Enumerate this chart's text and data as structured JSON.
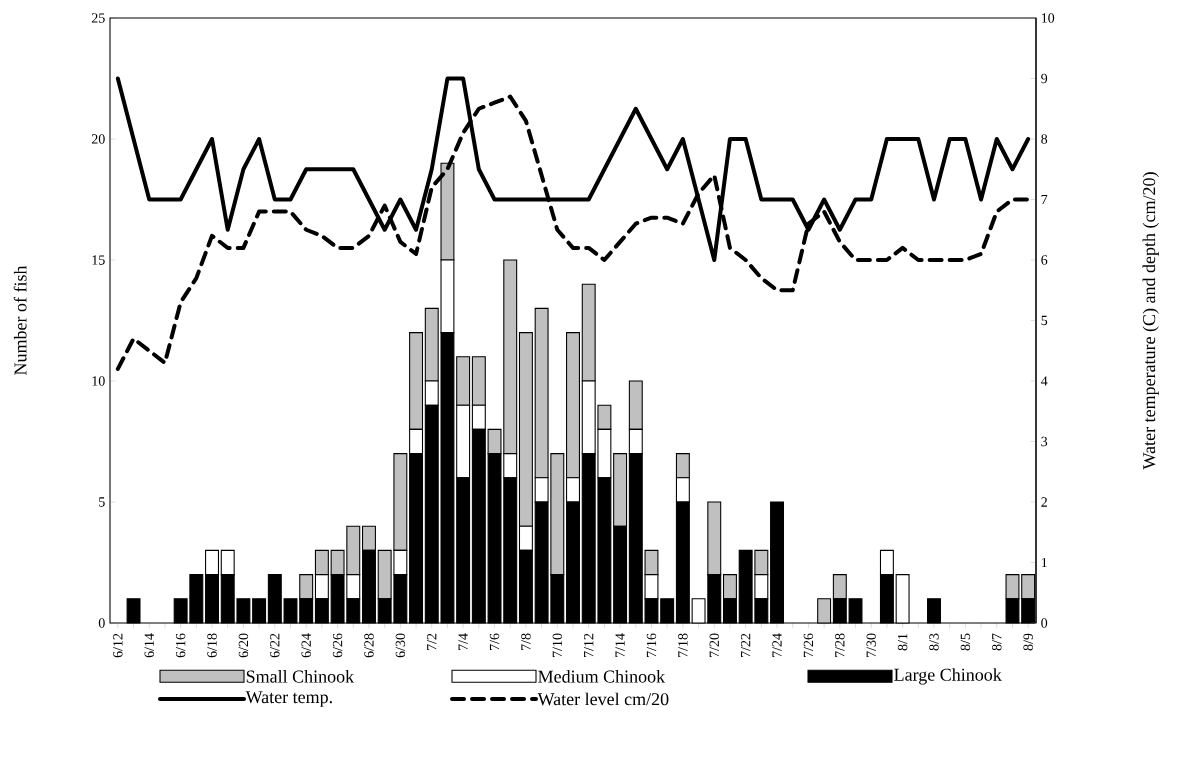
{
  "chart_data": {
    "type": "bar",
    "stacked": true,
    "ylabel": "Number of fish",
    "y2label": "Water temperature (C) and depth (cm/20)",
    "categories": [
      "6/12",
      null,
      "6/14",
      null,
      "6/16",
      null,
      "6/18",
      null,
      "6/20",
      null,
      "6/22",
      null,
      "6/24",
      null,
      "6/26",
      null,
      "6/28",
      null,
      "6/30",
      null,
      "7/2",
      null,
      "7/4",
      null,
      "7/6",
      null,
      "7/8",
      null,
      "7/10",
      null,
      "7/12",
      null,
      "7/14",
      null,
      "7/16",
      null,
      "7/18",
      null,
      "7/20",
      null,
      "7/22",
      null,
      "7/24",
      null,
      "7/26",
      null,
      "7/28",
      null,
      "7/30",
      null,
      "8/1",
      null,
      "8/3",
      null,
      "8/5",
      null,
      "8/7",
      null,
      "8/9"
    ],
    "ylim": [
      0,
      25
    ],
    "yticks": [
      0,
      5,
      10,
      15,
      20,
      25
    ],
    "y2lim": [
      0,
      10
    ],
    "y2ticks": [
      0,
      1,
      2,
      3,
      4,
      5,
      6,
      7,
      8,
      9,
      10
    ],
    "legend": "bottom",
    "grid": false,
    "series": [
      {
        "name": "Large Chinook",
        "color": "#000000",
        "values": [
          0,
          1,
          0,
          0,
          1,
          2,
          2,
          2,
          1,
          1,
          2,
          1,
          1,
          1,
          2,
          1,
          3,
          1,
          2,
          7,
          9,
          12,
          6,
          8,
          7,
          6,
          3,
          5,
          2,
          5,
          7,
          6,
          4,
          7,
          1,
          1,
          5,
          0,
          2,
          1,
          3,
          1,
          5,
          0,
          0,
          0,
          1,
          1,
          0,
          2,
          0,
          0,
          1,
          0,
          0,
          0,
          0,
          1,
          1
        ]
      },
      {
        "name": "Medium Chinook",
        "color": "#ffffff",
        "values": [
          0,
          0,
          0,
          0,
          0,
          0,
          1,
          1,
          0,
          0,
          0,
          0,
          0,
          1,
          0,
          1,
          0,
          0,
          1,
          1,
          1,
          3,
          3,
          1,
          0,
          1,
          1,
          1,
          0,
          1,
          3,
          2,
          0,
          1,
          1,
          0,
          1,
          1,
          0,
          0,
          0,
          1,
          0,
          0,
          0,
          0,
          0,
          0,
          0,
          1,
          2,
          0,
          0,
          0,
          0,
          0,
          0,
          0,
          0
        ]
      },
      {
        "name": "Small Chinook",
        "color": "#c0c0c0",
        "values": [
          0,
          0,
          0,
          0,
          0,
          0,
          0,
          0,
          0,
          0,
          0,
          0,
          1,
          1,
          1,
          2,
          1,
          2,
          4,
          4,
          3,
          4,
          2,
          2,
          1,
          8,
          8,
          7,
          5,
          6,
          4,
          1,
          3,
          2,
          1,
          0,
          1,
          0,
          3,
          1,
          0,
          1,
          0,
          0,
          0,
          1,
          1,
          0,
          0,
          0,
          0,
          0,
          0,
          0,
          0,
          0,
          0,
          1,
          1
        ]
      },
      {
        "name": "Water temp.",
        "type": "line",
        "axis": "y2",
        "line_style": "solid",
        "color": "#000000",
        "values": [
          9,
          8,
          7,
          7,
          7,
          7.5,
          8,
          6.5,
          7.5,
          8,
          7,
          7,
          7.5,
          7.5,
          7.5,
          7.5,
          7,
          6.5,
          7,
          6.5,
          7.5,
          9,
          9,
          7.5,
          7,
          7,
          7,
          7,
          7,
          7,
          7,
          7.5,
          8,
          8.5,
          8,
          7.5,
          8,
          7,
          6,
          8,
          8,
          7,
          7,
          7,
          6.5,
          7,
          6.5,
          7,
          7,
          8,
          8,
          8,
          7,
          8,
          8,
          7,
          8,
          7.5,
          8
        ]
      },
      {
        "name": "Water level cm/20",
        "type": "line",
        "axis": "y2",
        "line_style": "dashed",
        "color": "#000000",
        "values": [
          4.2,
          4.7,
          4.5,
          4.3,
          5.3,
          5.7,
          6.4,
          6.2,
          6.2,
          6.8,
          6.8,
          6.8,
          6.5,
          6.4,
          6.2,
          6.2,
          6.4,
          6.9,
          6.3,
          6.1,
          7.2,
          7.5,
          8.1,
          8.5,
          8.6,
          8.7,
          8.3,
          7.4,
          6.5,
          6.2,
          6.2,
          6,
          6.3,
          6.6,
          6.7,
          6.7,
          6.6,
          7.1,
          7.4,
          6.2,
          6,
          5.7,
          5.5,
          5.5,
          6.6,
          6.8,
          6.3,
          6,
          6,
          6,
          6.2,
          6,
          6,
          6,
          6,
          6.1,
          6.8,
          7,
          7
        ]
      }
    ]
  }
}
